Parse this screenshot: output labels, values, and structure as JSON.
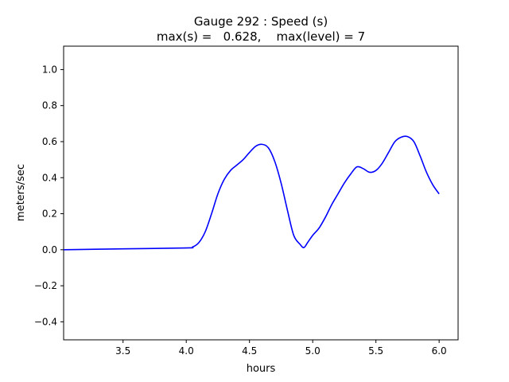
{
  "chart_data": {
    "type": "line",
    "title": "Gauge 292 : Speed (s)",
    "subtitle": "max(s) =   0.628,    max(level) = 7",
    "xlabel": "hours",
    "ylabel": "meters/sec",
    "xlim": [
      3.03,
      6.15
    ],
    "ylim": [
      -0.5,
      1.13
    ],
    "grid": false,
    "legend": "none",
    "xticks": [
      "3.5",
      "4.0",
      "4.5",
      "5.0",
      "5.5",
      "6.0"
    ],
    "yticks": [
      "−0.4",
      "−0.2",
      "0.0",
      "0.2",
      "0.4",
      "0.6",
      "0.8",
      "1.0"
    ],
    "series": [
      {
        "color": "#0000ff",
        "x": [
          3.03,
          3.5,
          4.0,
          4.05,
          4.1,
          4.15,
          4.2,
          4.25,
          4.3,
          4.35,
          4.4,
          4.45,
          4.5,
          4.55,
          4.6,
          4.65,
          4.7,
          4.75,
          4.8,
          4.85,
          4.9,
          4.93,
          4.96,
          5.0,
          5.05,
          5.1,
          5.15,
          5.2,
          5.25,
          5.3,
          5.35,
          5.4,
          5.45,
          5.5,
          5.55,
          5.6,
          5.65,
          5.7,
          5.75,
          5.8,
          5.85,
          5.9,
          5.95,
          6.0
        ],
        "y": [
          0.0,
          0.005,
          0.01,
          0.015,
          0.04,
          0.1,
          0.2,
          0.31,
          0.39,
          0.44,
          0.47,
          0.5,
          0.54,
          0.575,
          0.585,
          0.565,
          0.49,
          0.37,
          0.22,
          0.08,
          0.03,
          0.012,
          0.04,
          0.08,
          0.12,
          0.18,
          0.25,
          0.31,
          0.37,
          0.42,
          0.46,
          0.45,
          0.43,
          0.44,
          0.48,
          0.54,
          0.6,
          0.625,
          0.628,
          0.6,
          0.52,
          0.43,
          0.36,
          0.31
        ]
      }
    ]
  }
}
